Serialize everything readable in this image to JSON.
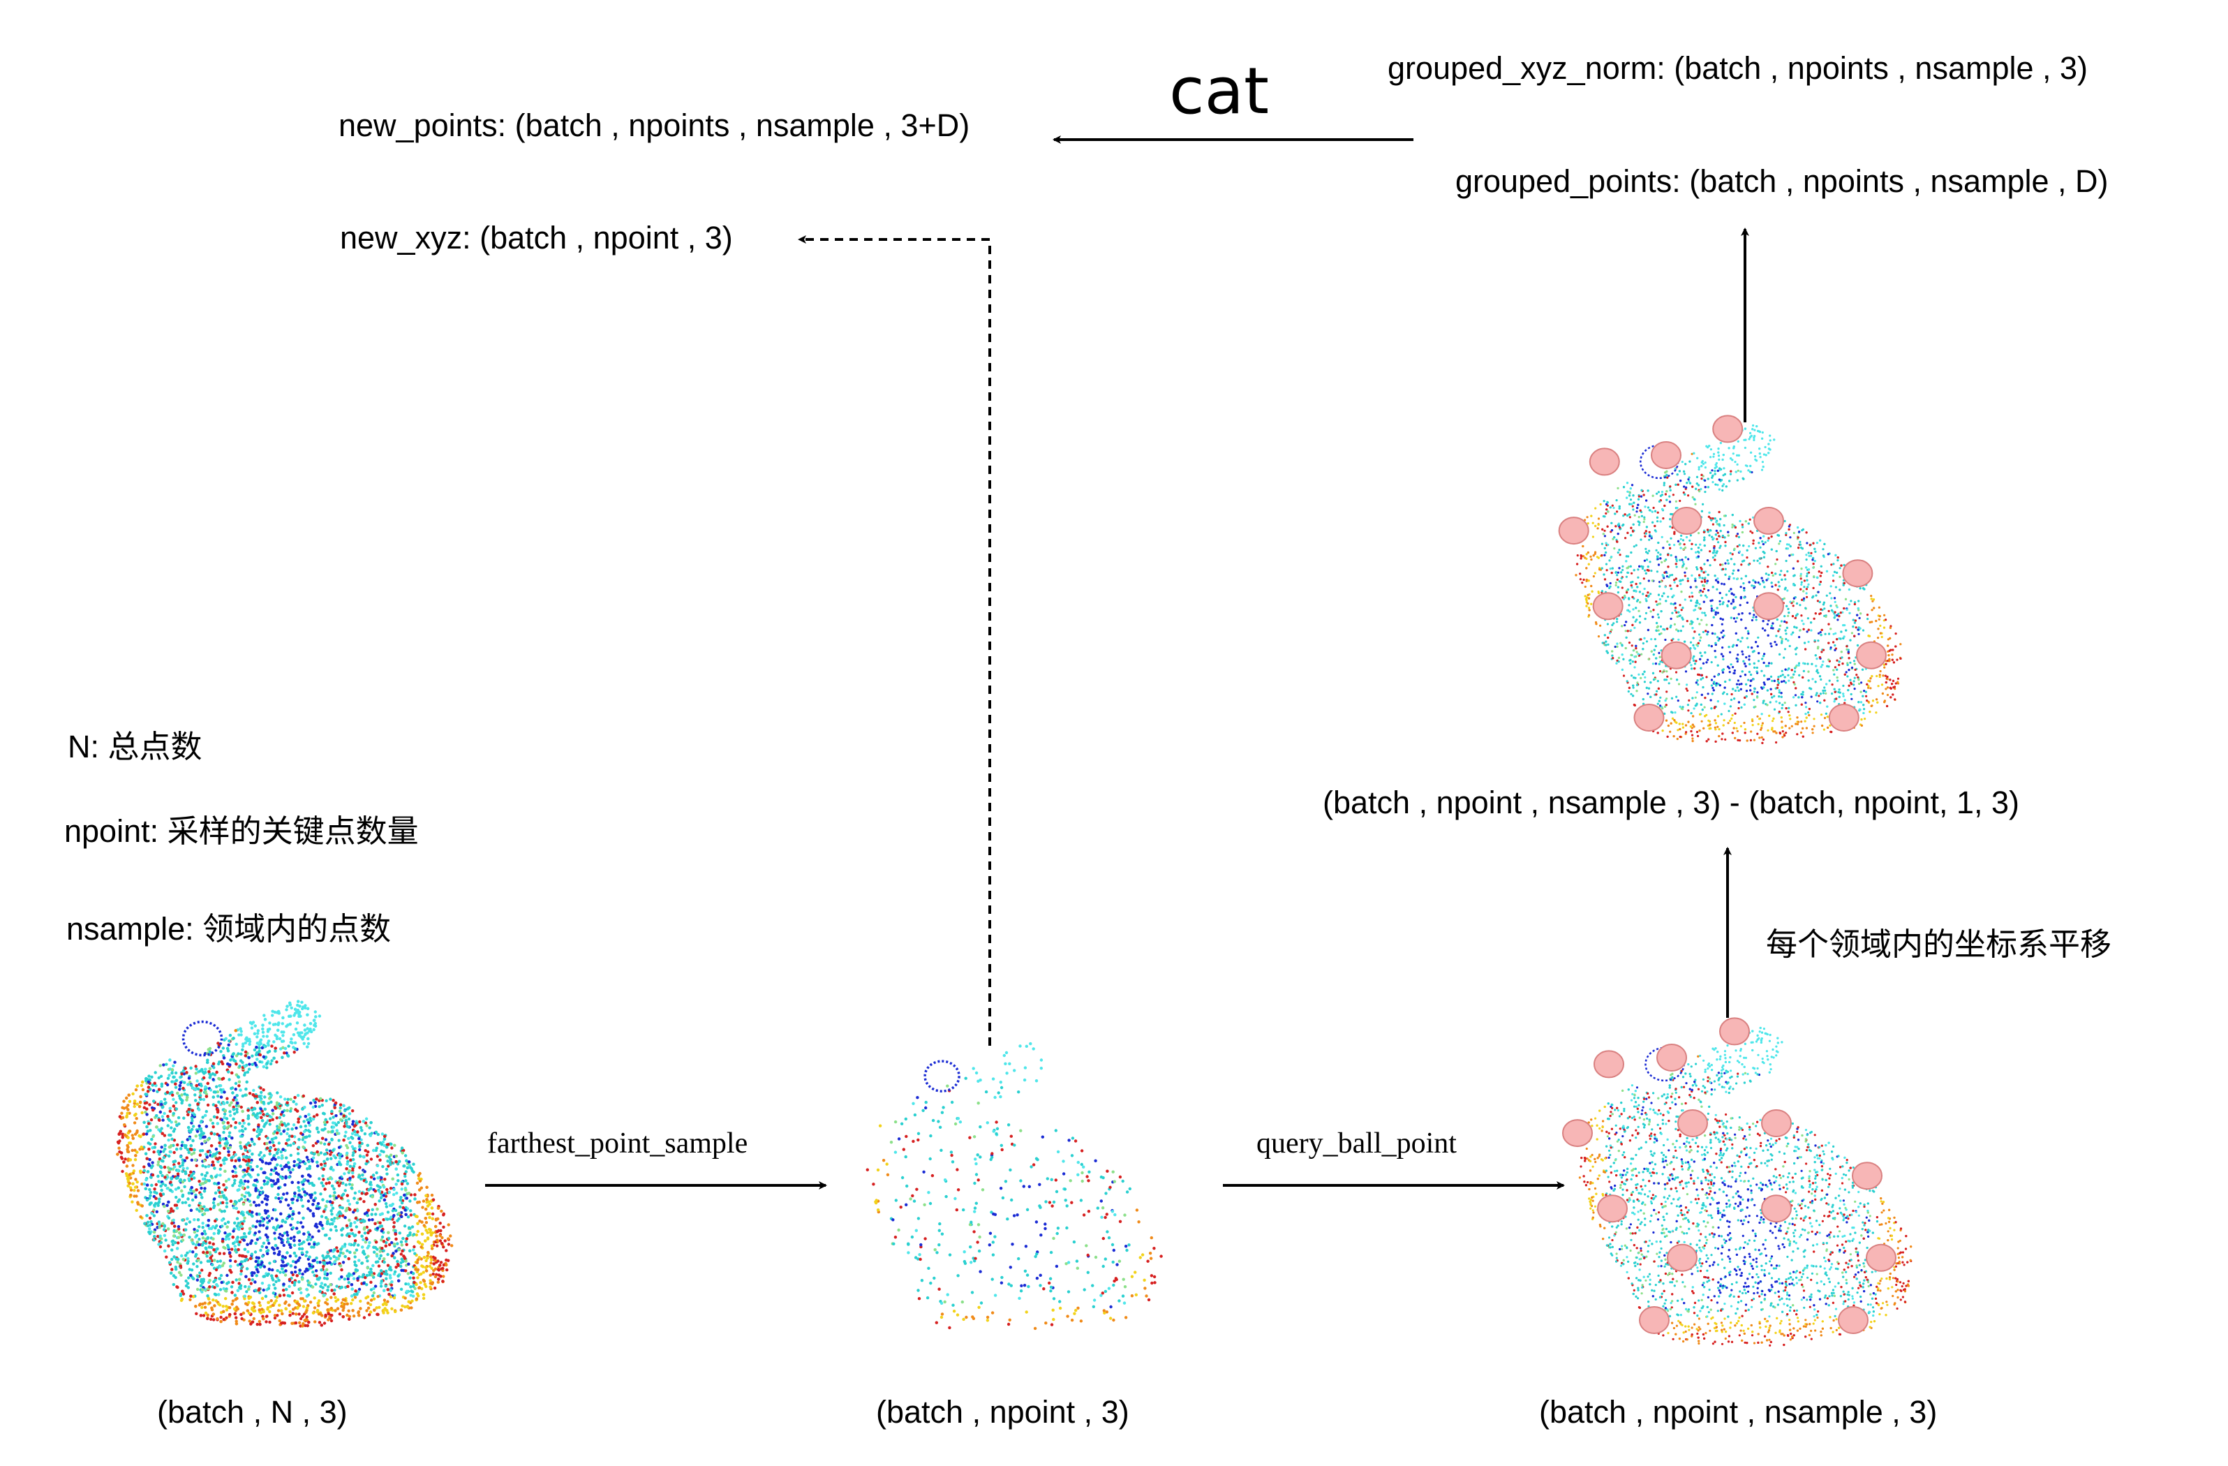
{
  "top": {
    "cat_label": "cat",
    "new_points": "new_points: (batch , npoints , nsample , 3+D)",
    "new_xyz": "new_xyz: (batch , npoint , 3)",
    "grouped_xyz_norm": "grouped_xyz_norm: (batch , npoints , nsample , 3)",
    "grouped_points": "grouped_points: (batch , npoints , nsample , D)"
  },
  "legend": {
    "n": "N: 总点数",
    "npoint": "npoint: 采样的关键点数量",
    "nsample": "nsample: 领域内的点数"
  },
  "steps": {
    "fps": "farthest_point_sample",
    "qbp": "query_ball_point",
    "translate": "每个领域内的坐标系平移"
  },
  "shapes": {
    "input": "(batch , N , 3)",
    "sampled": "(batch , npoint , 3)",
    "grouped": "(batch , npoint , nsample , 3)",
    "subtract": "(batch , npoint , nsample , 3)  -   (batch, npoint, 1, 3)"
  },
  "colors": {
    "arrow": "#000000",
    "key_point_fill": "#f7b6b6",
    "key_point_stroke": "#d98080",
    "point_palette": [
      "#d62020",
      "#f08a18",
      "#f2d21a",
      "#2ad0d0",
      "#4fe6ea",
      "#1a2bd4",
      "#8ce08a"
    ]
  }
}
